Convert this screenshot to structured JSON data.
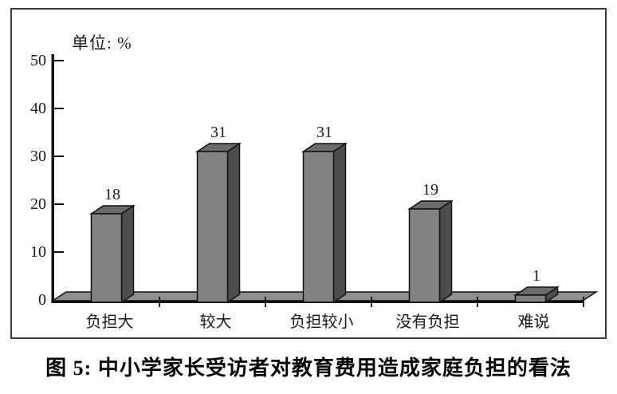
{
  "chart_data": {
    "type": "bar",
    "categories": [
      "负担大",
      "较大",
      "负担较小",
      "没有负担",
      "难说"
    ],
    "values": [
      18,
      31,
      31,
      19,
      1
    ],
    "value_labels": [
      "18",
      "31",
      "31",
      "19",
      "1"
    ],
    "title": "图 5: 中小学家长受访者对教育费用造成家庭负担的看法",
    "unit_label": "单位: %",
    "xlabel": "",
    "ylabel": "",
    "ylim": [
      0,
      50
    ],
    "yticks": [
      0,
      10,
      20,
      30,
      40,
      50
    ],
    "ytick_labels": [
      "0",
      "10",
      "20",
      "30",
      "40",
      "50"
    ],
    "grid": false,
    "legend": "none",
    "style": "3d-bar",
    "colors": {
      "bar_front": "#828282",
      "bar_top": "#6b6b6b",
      "bar_side": "#4d4d4d",
      "floor": "#8f8f8f",
      "outline": "#111111",
      "frame_border": "#3c3c3c",
      "background": "#ffffff"
    }
  }
}
